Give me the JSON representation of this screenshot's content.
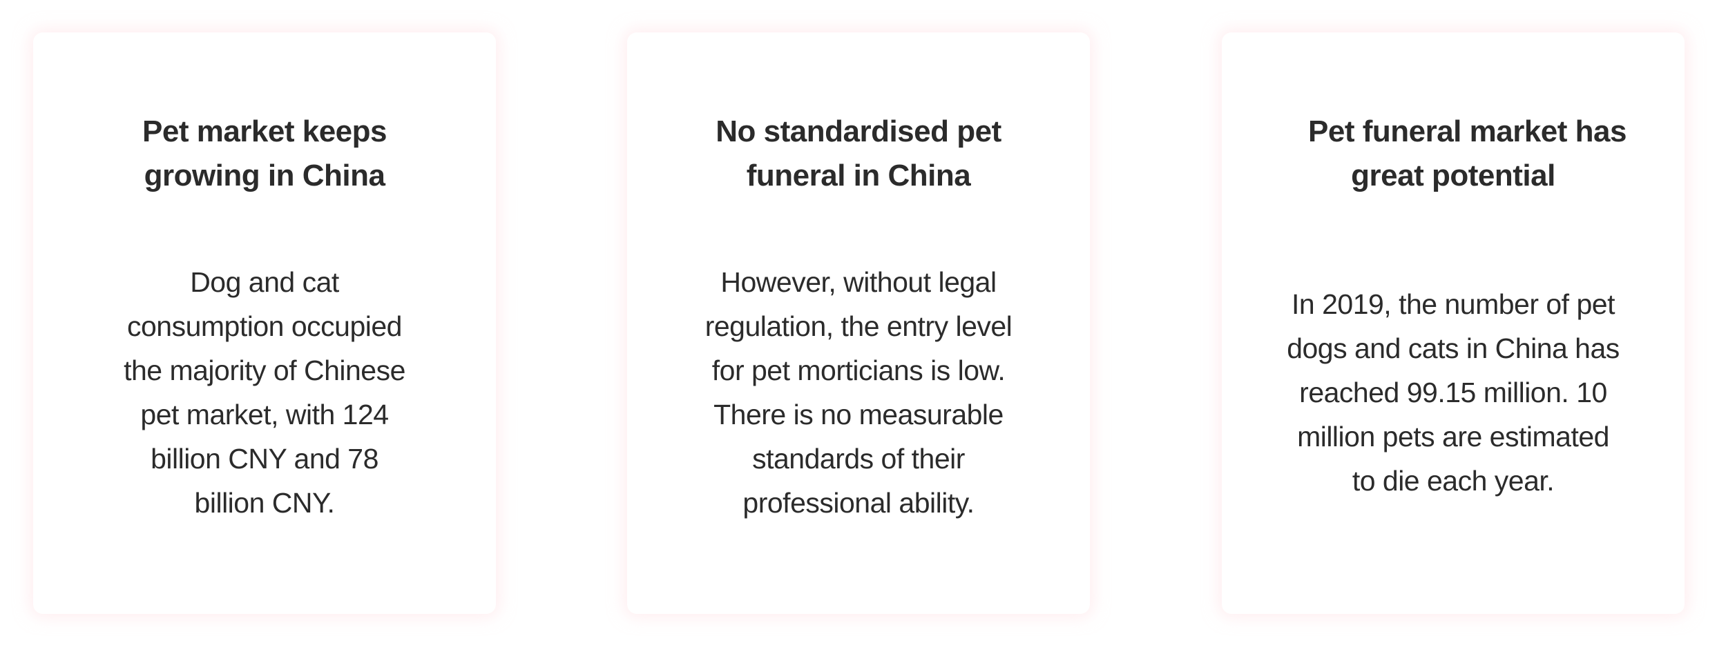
{
  "cards": [
    {
      "title_lines": [
        "Pet market keeps",
        "growing in China"
      ],
      "body_lines": [
        "Dog and cat",
        "consumption occupied",
        "the majority of Chinese",
        "pet market,  with 124",
        "billion CNY and 78",
        "billion CNY."
      ]
    },
    {
      "title_lines": [
        "No standardised pet",
        "funeral in China"
      ],
      "body_lines": [
        "However, without legal",
        "regulation, the entry level",
        "for pet morticians is low.",
        "There is no measurable",
        "standards of their",
        "professional ability."
      ]
    },
    {
      "title_lines": [
        "Pet funeral market has",
        "great potential"
      ],
      "body_lines": [
        "In 2019, the number of pet",
        "dogs and cats in China has",
        "reached 99.15 million. 10",
        "million pets are estimated",
        "to die each year."
      ]
    }
  ]
}
